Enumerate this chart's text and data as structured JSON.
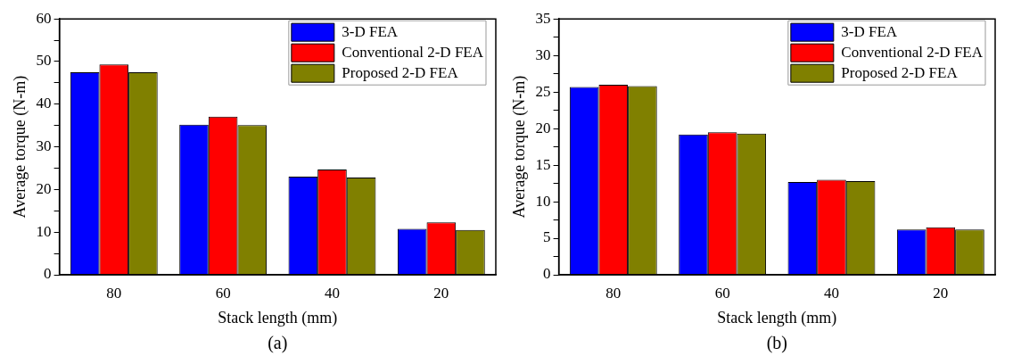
{
  "chart_data": [
    {
      "type": "bar",
      "xlabel": "Stack length (mm)",
      "ylabel": "Average torque (N-m)",
      "annotations": [
        "(a)"
      ],
      "categories": [
        "80",
        "60",
        "40",
        "20"
      ],
      "series": [
        {
          "name": "3-D FEA",
          "color": "#0000ff",
          "values": [
            47.5,
            35.2,
            23.0,
            10.8
          ]
        },
        {
          "name": "Conventional 2-D FEA",
          "color": "#ff0000",
          "values": [
            49.3,
            37.1,
            24.7,
            12.3
          ]
        },
        {
          "name": "Proposed 2-D FEA",
          "color": "#808000",
          "values": [
            47.5,
            35.1,
            22.8,
            10.5
          ]
        }
      ],
      "ylim": [
        0,
        60
      ],
      "yticks": [
        0,
        {
          "value": 5,
          "label": null
        },
        10,
        {
          "value": 15,
          "label": null
        },
        20,
        {
          "value": 25,
          "label": null
        },
        30,
        {
          "value": 35,
          "label": null
        },
        40,
        {
          "value": 45,
          "label": null
        },
        50,
        {
          "value": 55,
          "label": null
        },
        60
      ],
      "grid": false,
      "legend": "top right"
    },
    {
      "type": "bar",
      "xlabel": "Stack length (mm)",
      "ylabel": "Average torque (N-m)",
      "annotations": [
        "(b)"
      ],
      "categories": [
        "80",
        "60",
        "40",
        "20"
      ],
      "series": [
        {
          "name": "3-D FEA",
          "color": "#0000ff",
          "values": [
            25.7,
            19.2,
            12.7,
            6.2
          ]
        },
        {
          "name": "Conventional 2-D FEA",
          "color": "#ff0000",
          "values": [
            26.0,
            19.5,
            13.0,
            6.5
          ]
        },
        {
          "name": "Proposed 2-D FEA",
          "color": "#808000",
          "values": [
            25.8,
            19.3,
            12.8,
            6.2
          ]
        }
      ],
      "ylim": [
        0,
        35
      ],
      "yticks": [
        0,
        {
          "value": 2.5,
          "label": null
        },
        5,
        {
          "value": 7.5,
          "label": null
        },
        10,
        {
          "value": 12.5,
          "label": null
        },
        15,
        {
          "value": 17.5,
          "label": null
        },
        20,
        {
          "value": 22.5,
          "label": null
        },
        25,
        {
          "value": 27.5,
          "label": null
        },
        30,
        {
          "value": 32.5,
          "label": null
        },
        35
      ],
      "grid": false,
      "legend": "top right"
    }
  ]
}
